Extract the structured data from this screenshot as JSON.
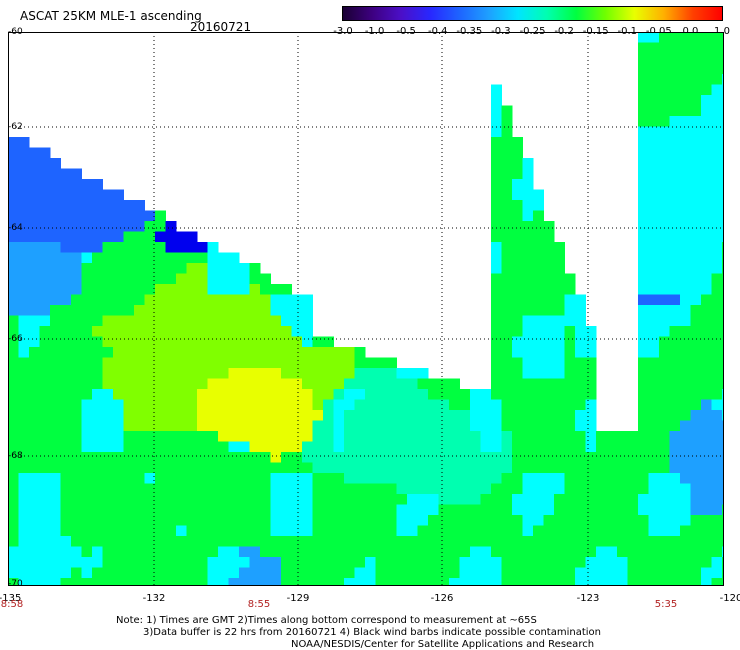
{
  "header": {
    "title": "ASCAT 25KM MLE-1 ascending",
    "date": "20160721"
  },
  "colorbar": {
    "ticks": [
      "-3.0",
      "-1.0",
      "-0.5",
      "-0.4",
      "-0.35",
      "-0.3",
      "-0.25",
      "-0.2",
      "-0.15",
      "-0.1",
      "-0.05",
      "0.0",
      "1.0"
    ],
    "colors": [
      "#1a0033",
      "#3d0080",
      "#4b0fc8",
      "#2828ff",
      "#1e64ff",
      "#1ea0ff",
      "#00e5ff",
      "#00ffb0",
      "#00ff40",
      "#70ff00",
      "#e8ff00",
      "#ffb000",
      "#ff4000",
      "#ff0000"
    ]
  },
  "map": {
    "lat_labels": [
      "-60",
      "-62",
      "-64",
      "-66",
      "-68",
      "-70"
    ],
    "lon_labels": [
      "-135",
      "-132",
      "-129",
      "-126",
      "-123",
      "-120"
    ],
    "time_labels": [
      "8:58",
      "8:55",
      "5:35"
    ],
    "colors": {
      "blue_deep": "#0000ee",
      "blue": "#1e64ff",
      "blue_light": "#1ea0ff",
      "cyan": "#00ffff",
      "cyan_green": "#00ffb0",
      "green": "#00ff40",
      "yellow_green": "#80ff00",
      "yellow": "#e8ff00",
      "no_data": "#ffffff"
    }
  },
  "footer": {
    "line1": "Note: 1) Times are GMT 2)Times along bottom correspond to measurement at ~65S",
    "line2": "3)Data buffer is 22 hrs from 20160721 4) Black wind barbs indicate possible contamination",
    "line3": "NOAA/NESDIS/Center for Satellite Applications and Research"
  }
}
